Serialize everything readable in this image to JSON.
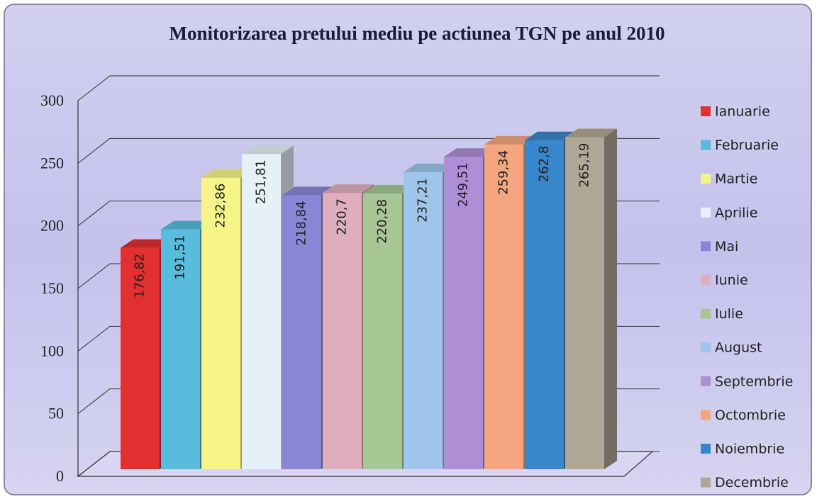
{
  "chart_data": {
    "type": "bar3d",
    "title": "Monitorizarea pretului mediu pe actiunea TGN pe anul 2010",
    "ylim": [
      0,
      300
    ],
    "yticks": [
      0,
      50,
      100,
      150,
      200,
      250,
      300
    ],
    "grid": true,
    "legend": "right",
    "series": [
      {
        "name": "Ianuarie",
        "color": "#e0302f",
        "values": [
          176.82
        ],
        "value_labels": [
          "176,82"
        ]
      },
      {
        "name": "Februarie",
        "color": "#58bcdc",
        "values": [
          191.51
        ],
        "value_labels": [
          "191,51"
        ]
      },
      {
        "name": "Martie",
        "color": "#f4f488",
        "values": [
          232.86
        ],
        "value_labels": [
          "232,86"
        ]
      },
      {
        "name": "Aprilie",
        "color": "#e6f0f8",
        "values": [
          251.81
        ],
        "value_labels": [
          "251,81"
        ]
      },
      {
        "name": "Mai",
        "color": "#8a86d6",
        "values": [
          218.84
        ],
        "value_labels": [
          "218,84"
        ]
      },
      {
        "name": "Iunie",
        "color": "#deaebf",
        "values": [
          220.7
        ],
        "value_labels": [
          "220,7"
        ]
      },
      {
        "name": "Iulie",
        "color": "#a6c696",
        "values": [
          220.28
        ],
        "value_labels": [
          "220,28"
        ]
      },
      {
        "name": "August",
        "color": "#9ec6ea",
        "values": [
          237.21
        ],
        "value_labels": [
          "237,21"
        ]
      },
      {
        "name": "Septembrie",
        "color": "#ae8ed6",
        "values": [
          249.51
        ],
        "value_labels": [
          "249,51"
        ]
      },
      {
        "name": "Octombrie",
        "color": "#f4a67f",
        "values": [
          259.34
        ],
        "value_labels": [
          "259,34"
        ]
      },
      {
        "name": "Noiembrie",
        "color": "#3a86ca",
        "values": [
          262.8
        ],
        "value_labels": [
          "262,8"
        ]
      },
      {
        "name": "Decembrie",
        "color": "#b0a796",
        "values": [
          265.19
        ],
        "value_labels": [
          "265,19"
        ]
      }
    ]
  }
}
